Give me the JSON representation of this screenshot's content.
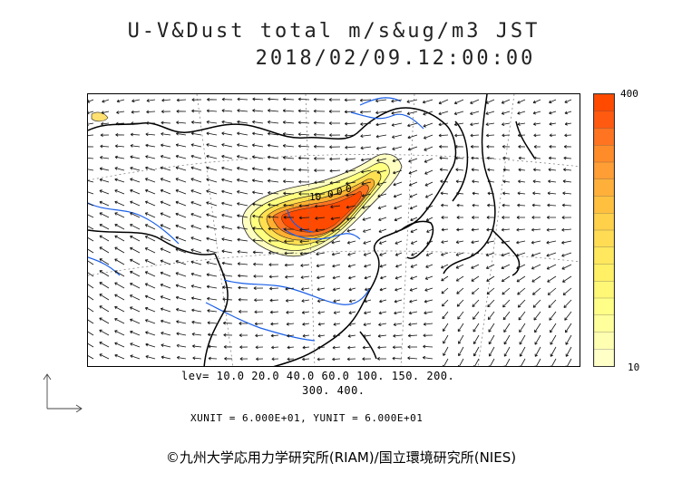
{
  "header": {
    "title_line1": "U-V&Dust total m/s&ug/m3 JST",
    "title_line2": "2018/02/09.12:00:00"
  },
  "colorbar": {
    "max_label": "400",
    "min_label": "10",
    "colors": [
      "#ff4a00",
      "#ff5a10",
      "#ff7420",
      "#ff8c28",
      "#ff9e34",
      "#ffb03a",
      "#ffc040",
      "#ffd04a",
      "#ffdc54",
      "#ffe85e",
      "#fff066",
      "#fff776",
      "#ffff88",
      "#ffff9c",
      "#ffffb2",
      "#ffffc8"
    ]
  },
  "map": {
    "coastline_color": "#000000",
    "river_color": "#1a5fe8",
    "grid_color": "#777777",
    "dust_contour_labels": [
      "10",
      "0",
      "0",
      "0"
    ]
  },
  "levels": {
    "line1": "lev= 10.0 20.0 40.0 60.0 100. 150. 200.",
    "line2": "300. 400."
  },
  "units": {
    "text": "XUNIT = 6.000E+01, YUNIT = 6.000E+01"
  },
  "footer": {
    "copyright": "©九州大学応用力学研究所(RIAM)/国立環境研究所(NIES)"
  }
}
